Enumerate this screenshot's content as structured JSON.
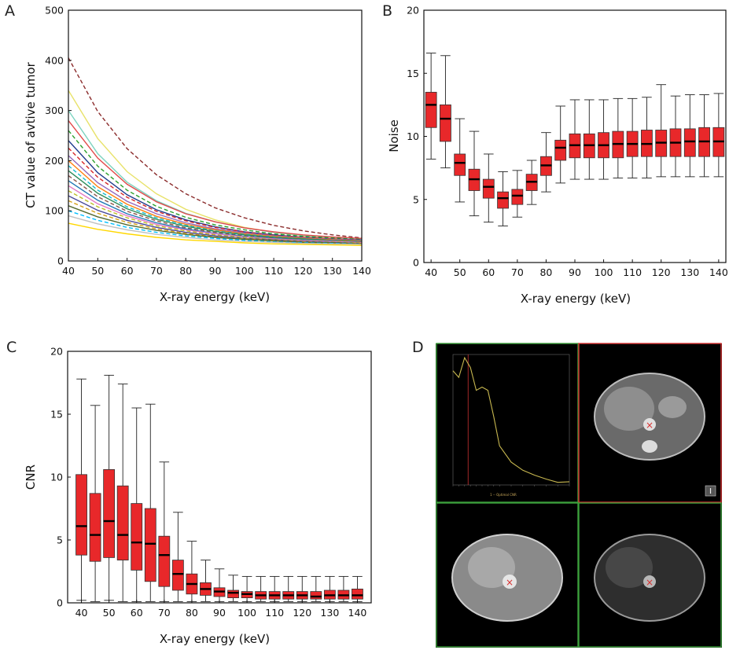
{
  "panels": {
    "a": "A",
    "b": "B",
    "c": "C",
    "d": "D"
  },
  "chart_data": [
    {
      "id": "A",
      "type": "line",
      "xlabel": "X-ray energy (keV)",
      "ylabel": "CT value of avtive tumor",
      "xlim": [
        40,
        140
      ],
      "ylim": [
        0,
        500
      ],
      "xticks": [
        40,
        50,
        60,
        70,
        80,
        90,
        100,
        110,
        120,
        130,
        140
      ],
      "yticks": [
        0,
        100,
        200,
        300,
        400,
        500
      ],
      "grid": false,
      "x": [
        40,
        50,
        60,
        70,
        80,
        90,
        100,
        110,
        120,
        130,
        140
      ],
      "series": [
        {
          "color": "#8b2c2c",
          "dashed": true,
          "values": [
            405,
            298,
            224,
            172,
            134,
            106,
            86,
            71,
            60,
            52,
            46
          ]
        },
        {
          "color": "#e8e26a",
          "dashed": false,
          "values": [
            340,
            244,
            178,
            134,
            103,
            82,
            67,
            57,
            50,
            45,
            41
          ]
        },
        {
          "color": "#7dd3c0",
          "dashed": false,
          "values": [
            300,
            214,
            157,
            120,
            95,
            78,
            66,
            57,
            51,
            47,
            44
          ]
        },
        {
          "color": "#e24a4a",
          "dashed": false,
          "values": [
            280,
            205,
            153,
            118,
            94,
            78,
            66,
            58,
            52,
            48,
            45
          ]
        },
        {
          "color": "#2ca02c",
          "dashed": true,
          "values": [
            260,
            189,
            141,
            109,
            87,
            72,
            62,
            54,
            49,
            46,
            43
          ]
        },
        {
          "color": "#1f3b8c",
          "dashed": false,
          "values": [
            240,
            176,
            132,
            102,
            82,
            68,
            58,
            52,
            47,
            44,
            42
          ]
        },
        {
          "color": "#d62728",
          "dashed": true,
          "values": [
            225,
            167,
            127,
            99,
            80,
            67,
            58,
            51,
            47,
            44,
            41
          ]
        },
        {
          "color": "#9467bd",
          "dashed": false,
          "values": [
            210,
            156,
            119,
            94,
            76,
            64,
            56,
            50,
            46,
            43,
            41
          ]
        },
        {
          "color": "#ff7f0e",
          "dashed": false,
          "values": [
            200,
            148,
            113,
            89,
            73,
            62,
            54,
            49,
            45,
            42,
            40
          ]
        },
        {
          "color": "#17becf",
          "dashed": true,
          "values": [
            190,
            141,
            108,
            86,
            71,
            60,
            53,
            48,
            44,
            41,
            39
          ]
        },
        {
          "color": "#2e8b57",
          "dashed": false,
          "values": [
            180,
            135,
            104,
            83,
            69,
            59,
            52,
            47,
            44,
            41,
            39
          ]
        },
        {
          "color": "#8c564b",
          "dashed": true,
          "values": [
            170,
            128,
            99,
            80,
            66,
            57,
            50,
            46,
            42,
            40,
            38
          ]
        },
        {
          "color": "#1f77b4",
          "dashed": false,
          "values": [
            160,
            121,
            94,
            76,
            64,
            55,
            49,
            45,
            42,
            39,
            37
          ]
        },
        {
          "color": "#e377c2",
          "dashed": false,
          "values": [
            150,
            114,
            90,
            73,
            62,
            54,
            48,
            44,
            41,
            39,
            37
          ]
        },
        {
          "color": "#bcbd22",
          "dashed": true,
          "values": [
            140,
            108,
            86,
            70,
            60,
            52,
            47,
            43,
            40,
            38,
            36
          ]
        },
        {
          "color": "#4a4a9a",
          "dashed": false,
          "values": [
            130,
            101,
            81,
            67,
            57,
            50,
            45,
            42,
            39,
            37,
            35
          ]
        },
        {
          "color": "#d4a017",
          "dashed": true,
          "values": [
            120,
            95,
            77,
            64,
            55,
            48,
            44,
            41,
            38,
            36,
            35
          ]
        },
        {
          "color": "#556b2f",
          "dashed": false,
          "values": [
            110,
            88,
            72,
            61,
            53,
            47,
            43,
            40,
            37,
            36,
            34
          ]
        },
        {
          "color": "#00bfff",
          "dashed": true,
          "values": [
            100,
            81,
            67,
            57,
            50,
            45,
            41,
            38,
            36,
            35,
            33
          ]
        },
        {
          "color": "#c0c0c0",
          "dashed": false,
          "values": [
            90,
            74,
            62,
            53,
            47,
            42,
            39,
            37,
            35,
            34,
            33
          ]
        },
        {
          "color": "#ffd700",
          "dashed": false,
          "values": [
            75,
            63,
            54,
            47,
            42,
            39,
            36,
            34,
            33,
            32,
            31
          ]
        }
      ]
    },
    {
      "id": "B",
      "type": "box",
      "xlabel": "X-ray energy (keV)",
      "ylabel": "Noise",
      "xlim": [
        37.5,
        142.5
      ],
      "ylim": [
        0,
        20
      ],
      "xticks": [
        40,
        50,
        60,
        70,
        80,
        90,
        100,
        110,
        120,
        130,
        140
      ],
      "yticks": [
        0,
        5,
        10,
        15,
        20
      ],
      "grid": false,
      "x": [
        40,
        45,
        50,
        55,
        60,
        65,
        70,
        75,
        80,
        85,
        90,
        95,
        100,
        105,
        110,
        115,
        120,
        125,
        130,
        135,
        140
      ],
      "boxes": [
        {
          "min": 8.2,
          "q1": 10.7,
          "median": 12.5,
          "q3": 13.5,
          "max": 16.6
        },
        {
          "min": 7.5,
          "q1": 9.6,
          "median": 11.4,
          "q3": 12.5,
          "max": 16.4
        },
        {
          "min": 4.8,
          "q1": 6.9,
          "median": 7.9,
          "q3": 8.6,
          "max": 11.4
        },
        {
          "min": 3.7,
          "q1": 5.7,
          "median": 6.6,
          "q3": 7.4,
          "max": 10.4
        },
        {
          "min": 3.2,
          "q1": 5.1,
          "median": 6.0,
          "q3": 6.6,
          "max": 8.6
        },
        {
          "min": 2.9,
          "q1": 4.3,
          "median": 5.1,
          "q3": 5.6,
          "max": 7.2
        },
        {
          "min": 3.6,
          "q1": 4.6,
          "median": 5.3,
          "q3": 5.8,
          "max": 7.3
        },
        {
          "min": 4.6,
          "q1": 5.7,
          "median": 6.4,
          "q3": 7.0,
          "max": 8.1
        },
        {
          "min": 5.6,
          "q1": 6.9,
          "median": 7.7,
          "q3": 8.4,
          "max": 10.3
        },
        {
          "min": 6.3,
          "q1": 8.1,
          "median": 9.1,
          "q3": 9.7,
          "max": 12.4
        },
        {
          "min": 6.6,
          "q1": 8.3,
          "median": 9.3,
          "q3": 10.2,
          "max": 12.9
        },
        {
          "min": 6.6,
          "q1": 8.3,
          "median": 9.3,
          "q3": 10.2,
          "max": 12.9
        },
        {
          "min": 6.6,
          "q1": 8.3,
          "median": 9.3,
          "q3": 10.3,
          "max": 12.9
        },
        {
          "min": 6.7,
          "q1": 8.3,
          "median": 9.4,
          "q3": 10.4,
          "max": 13.0
        },
        {
          "min": 6.7,
          "q1": 8.4,
          "median": 9.4,
          "q3": 10.4,
          "max": 13.0
        },
        {
          "min": 6.7,
          "q1": 8.4,
          "median": 9.4,
          "q3": 10.5,
          "max": 13.1
        },
        {
          "min": 6.8,
          "q1": 8.4,
          "median": 9.5,
          "q3": 10.5,
          "max": 14.1
        },
        {
          "min": 6.8,
          "q1": 8.4,
          "median": 9.5,
          "q3": 10.6,
          "max": 13.2
        },
        {
          "min": 6.8,
          "q1": 8.4,
          "median": 9.6,
          "q3": 10.6,
          "max": 13.3
        },
        {
          "min": 6.8,
          "q1": 8.4,
          "median": 9.6,
          "q3": 10.7,
          "max": 13.3
        },
        {
          "min": 6.8,
          "q1": 8.4,
          "median": 9.6,
          "q3": 10.7,
          "max": 13.4
        }
      ],
      "box_color": "#e8282a"
    },
    {
      "id": "C",
      "type": "box",
      "xlabel": "X-ray energy (keV)",
      "ylabel": "CNR",
      "xlim": [
        35,
        145
      ],
      "ylim": [
        0,
        20
      ],
      "xticks": [
        40,
        50,
        60,
        70,
        80,
        90,
        100,
        110,
        120,
        130,
        140
      ],
      "yticks": [
        0,
        5,
        10,
        15,
        20
      ],
      "grid": false,
      "x": [
        40,
        45,
        50,
        55,
        60,
        65,
        70,
        75,
        80,
        85,
        90,
        95,
        100,
        105,
        110,
        115,
        120,
        125,
        130,
        135,
        140
      ],
      "boxes": [
        {
          "min": 0.2,
          "q1": 3.8,
          "median": 6.1,
          "q3": 10.2,
          "max": 17.8
        },
        {
          "min": 0.1,
          "q1": 3.3,
          "median": 5.4,
          "q3": 8.7,
          "max": 15.7
        },
        {
          "min": 0.2,
          "q1": 3.6,
          "median": 6.5,
          "q3": 10.6,
          "max": 18.1
        },
        {
          "min": 0.1,
          "q1": 3.4,
          "median": 5.4,
          "q3": 9.3,
          "max": 17.4
        },
        {
          "min": 0.1,
          "q1": 2.6,
          "median": 4.8,
          "q3": 7.9,
          "max": 15.5
        },
        {
          "min": 0.1,
          "q1": 1.7,
          "median": 4.7,
          "q3": 7.5,
          "max": 15.8
        },
        {
          "min": 0.1,
          "q1": 1.3,
          "median": 3.8,
          "q3": 5.3,
          "max": 11.2
        },
        {
          "min": 0.1,
          "q1": 1.0,
          "median": 2.3,
          "q3": 3.4,
          "max": 7.2
        },
        {
          "min": 0.1,
          "q1": 0.7,
          "median": 1.5,
          "q3": 2.3,
          "max": 4.9
        },
        {
          "min": 0.1,
          "q1": 0.6,
          "median": 1.1,
          "q3": 1.6,
          "max": 3.4
        },
        {
          "min": 0.1,
          "q1": 0.5,
          "median": 0.9,
          "q3": 1.2,
          "max": 2.7
        },
        {
          "min": 0.1,
          "q1": 0.4,
          "median": 0.8,
          "q3": 1.0,
          "max": 2.2
        },
        {
          "min": 0.1,
          "q1": 0.4,
          "median": 0.7,
          "q3": 0.9,
          "max": 2.1
        },
        {
          "min": 0.1,
          "q1": 0.3,
          "median": 0.6,
          "q3": 0.9,
          "max": 2.1
        },
        {
          "min": 0.1,
          "q1": 0.3,
          "median": 0.6,
          "q3": 0.9,
          "max": 2.1
        },
        {
          "min": 0.1,
          "q1": 0.3,
          "median": 0.6,
          "q3": 0.9,
          "max": 2.1
        },
        {
          "min": 0.1,
          "q1": 0.3,
          "median": 0.6,
          "q3": 0.9,
          "max": 2.1
        },
        {
          "min": 0.1,
          "q1": 0.3,
          "median": 0.5,
          "q3": 0.9,
          "max": 2.1
        },
        {
          "min": 0.1,
          "q1": 0.3,
          "median": 0.6,
          "q3": 1.0,
          "max": 2.1
        },
        {
          "min": 0.1,
          "q1": 0.3,
          "median": 0.6,
          "q3": 1.0,
          "max": 2.1
        },
        {
          "min": 0.1,
          "q1": 0.3,
          "median": 0.6,
          "q3": 1.1,
          "max": 2.1
        }
      ],
      "box_color": "#e8282a"
    }
  ],
  "panel_d": {
    "kind": "ct-viewer",
    "frame_colors": {
      "graph": "#3ca03c",
      "top_right": "#d83030",
      "bottom_left": "#3ca03c",
      "bottom_right": "#3ca03c"
    },
    "curve": {
      "color": "#c8b850",
      "xlim": [
        40,
        140
      ],
      "ylim": [
        0,
        4.0
      ],
      "x": [
        40,
        45,
        50,
        55,
        60,
        65,
        70,
        75,
        80,
        90,
        100,
        110,
        120,
        130,
        140
      ],
      "y": [
        3.5,
        3.3,
        3.9,
        3.6,
        2.9,
        3.0,
        2.9,
        2.1,
        1.2,
        0.7,
        0.45,
        0.3,
        0.18,
        0.08,
        0.1
      ],
      "marker_x": 53
    },
    "legend": "1 -- Optimal CNR"
  }
}
